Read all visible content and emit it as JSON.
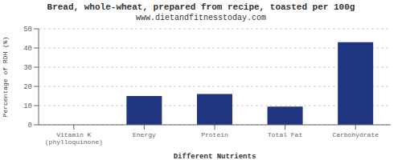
{
  "chart_data": {
    "type": "bar",
    "title": "Bread, whole-wheat, prepared from recipe, toasted per 100g",
    "subtitle": "www.dietandfitnesstoday.com",
    "xlabel": "Different Nutrients",
    "ylabel": "Percentage of RDH (%)",
    "categories": [
      "Vitamin K (phylloquinone)",
      "Energy",
      "Protein",
      "Total Fat",
      "Carbohydrate"
    ],
    "values": [
      0,
      15,
      16,
      9.5,
      43
    ],
    "color": "#1f3580",
    "ylim": [
      0,
      50
    ],
    "yticks": [
      0,
      10,
      20,
      30,
      40,
      50
    ],
    "grid": true
  }
}
